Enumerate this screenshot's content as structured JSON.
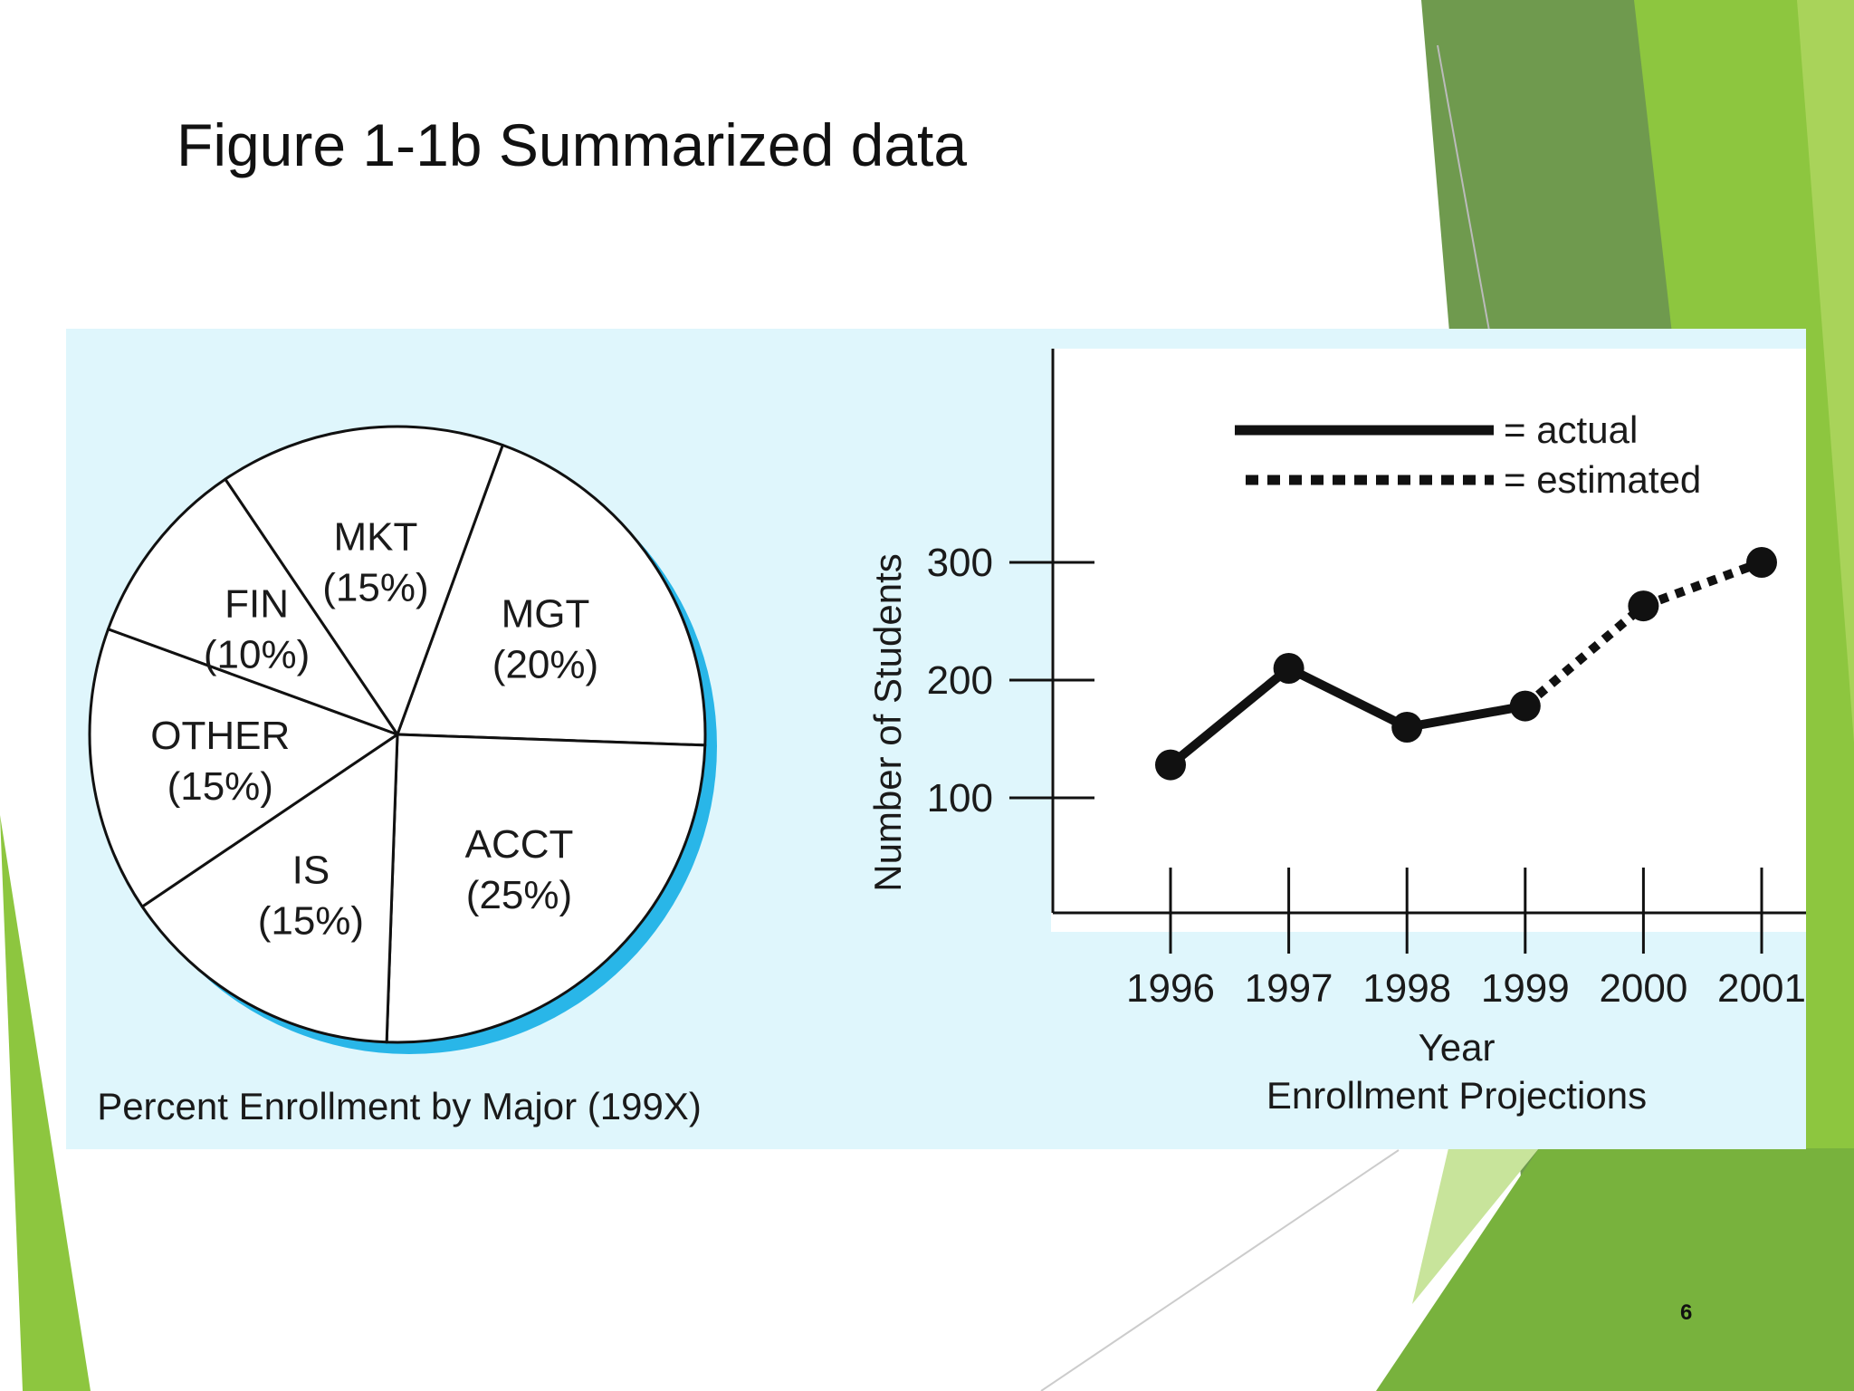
{
  "slide": {
    "title": "Figure 1-1b Summarized data",
    "page_number": "6",
    "accent_colors": [
      "#6f9a4e",
      "#8dc63f",
      "#b5d96a",
      "#78b23d"
    ]
  },
  "chart_data": [
    {
      "type": "pie",
      "caption": "Percent Enrollment by Major (199X)",
      "categories": [
        "MGT",
        "ACCT",
        "IS",
        "OTHER",
        "FIN",
        "MKT"
      ],
      "values": [
        20,
        25,
        15,
        15,
        10,
        15
      ],
      "value_labels": [
        "(20%)",
        "(25%)",
        "(15%)",
        "(15%)",
        "(10%)",
        "(15%)"
      ],
      "colors": {
        "fill": "#ffffff",
        "stroke": "#111111",
        "shadow": "#29b6e8",
        "background": "#dff6fc"
      }
    },
    {
      "type": "line",
      "caption": "Enrollment Projections",
      "xlabel": "Year",
      "ylabel": "Number of Students",
      "x": [
        "1996",
        "1997",
        "1998",
        "1999",
        "2000",
        "2001"
      ],
      "y_ticks": [
        "100",
        "200",
        "300"
      ],
      "y_tick_values": [
        100,
        200,
        300
      ],
      "ylim": [
        0,
        330
      ],
      "series": [
        {
          "name": "actual",
          "x": [
            "1996",
            "1997",
            "1998",
            "1999"
          ],
          "values": [
            128,
            210,
            160,
            178
          ],
          "style": "solid"
        },
        {
          "name": "estimated",
          "x": [
            "1999",
            "2000",
            "2001"
          ],
          "values": [
            178,
            263,
            300
          ],
          "style": "dotted"
        }
      ],
      "legend": {
        "placement": "top",
        "entries": [
          "= actual",
          "= estimated"
        ]
      }
    }
  ]
}
